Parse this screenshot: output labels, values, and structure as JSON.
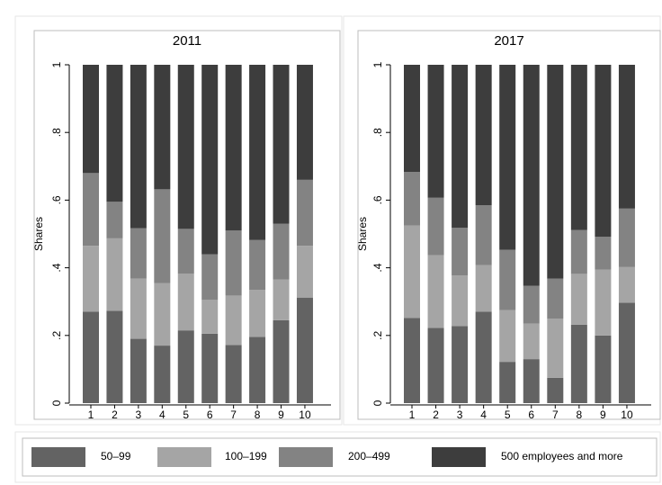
{
  "chart_data": [
    {
      "type": "bar",
      "stacked": true,
      "title": "2011",
      "ylabel": "Shares",
      "categories": [
        "1",
        "2",
        "3",
        "4",
        "5",
        "6",
        "7",
        "8",
        "9",
        "10"
      ],
      "ylim": [
        0,
        1
      ],
      "yticks": [
        0,
        {
          "value": 0.2,
          "label": ".2"
        },
        {
          "value": 0.4,
          "label": ".4"
        },
        {
          "value": 0.6,
          "label": ".6"
        },
        {
          "value": 0.8,
          "label": ".8"
        },
        1
      ],
      "series": [
        {
          "name": "50–99",
          "color": "#636363",
          "values": [
            0.27,
            0.273,
            0.19,
            0.17,
            0.215,
            0.205,
            0.172,
            0.196,
            0.245,
            0.312
          ]
        },
        {
          "name": "100–199",
          "color": "#a5a5a5",
          "values": [
            0.195,
            0.214,
            0.178,
            0.185,
            0.168,
            0.1,
            0.146,
            0.139,
            0.12,
            0.153
          ]
        },
        {
          "name": "200–499",
          "color": "#838383",
          "values": [
            0.215,
            0.108,
            0.149,
            0.277,
            0.132,
            0.135,
            0.192,
            0.147,
            0.165,
            0.195
          ]
        },
        {
          "name": "500 employees and more",
          "color": "#3d3d3d",
          "values": [
            0.32,
            0.405,
            0.483,
            0.368,
            0.485,
            0.56,
            0.49,
            0.518,
            0.47,
            0.34
          ]
        }
      ]
    },
    {
      "type": "bar",
      "stacked": true,
      "title": "2017",
      "ylabel": "Shares",
      "categories": [
        "1",
        "2",
        "3",
        "4",
        "5",
        "6",
        "7",
        "8",
        "9",
        "10"
      ],
      "ylim": [
        0,
        1
      ],
      "yticks": [
        0,
        {
          "value": 0.2,
          "label": ".2"
        },
        {
          "value": 0.4,
          "label": ".4"
        },
        {
          "value": 0.6,
          "label": ".6"
        },
        {
          "value": 0.8,
          "label": ".8"
        },
        1
      ],
      "series": [
        {
          "name": "50–99",
          "color": "#636363",
          "values": [
            0.252,
            0.222,
            0.228,
            0.27,
            0.122,
            0.13,
            0.075,
            0.232,
            0.2,
            0.297
          ]
        },
        {
          "name": "100–199",
          "color": "#a5a5a5",
          "values": [
            0.273,
            0.215,
            0.149,
            0.138,
            0.153,
            0.105,
            0.175,
            0.15,
            0.195,
            0.105
          ]
        },
        {
          "name": "200–499",
          "color": "#838383",
          "values": [
            0.158,
            0.17,
            0.141,
            0.177,
            0.178,
            0.112,
            0.118,
            0.13,
            0.097,
            0.173
          ]
        },
        {
          "name": "500 employees and more",
          "color": "#3d3d3d",
          "values": [
            0.317,
            0.393,
            0.482,
            0.415,
            0.547,
            0.653,
            0.632,
            0.488,
            0.508,
            0.425
          ]
        }
      ]
    }
  ]
}
